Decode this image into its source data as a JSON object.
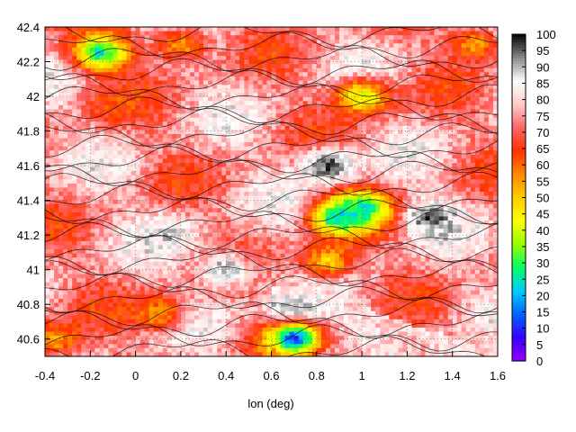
{
  "chart_data": {
    "type": "heatmap",
    "title": "",
    "xlabel": "lon (deg)",
    "ylabel": "",
    "xlim": [
      -0.4,
      1.6
    ],
    "ylim": [
      40.5,
      42.4
    ],
    "x_ticks": [
      "-0.4",
      "-0.2",
      "0",
      "0.2",
      "0.4",
      "0.6",
      "0.8",
      "1",
      "1.2",
      "1.4",
      "1.6"
    ],
    "y_ticks": [
      "40.6",
      "40.8",
      "41",
      "41.2",
      "41.4",
      "41.6",
      "41.8",
      "42",
      "42.2",
      "42.4"
    ],
    "colorbar": {
      "range": [
        0,
        100
      ],
      "ticks": [
        "0",
        "5",
        "10",
        "15",
        "20",
        "25",
        "30",
        "35",
        "40",
        "45",
        "50",
        "55",
        "60",
        "65",
        "70",
        "75",
        "80",
        "85",
        "90",
        "95",
        "100"
      ],
      "palette": [
        "#9900ff",
        "#3300ff",
        "#0066ff",
        "#00ccff",
        "#00ff66",
        "#99ff00",
        "#ffff00",
        "#ffcc00",
        "#ff8800",
        "#ff3300",
        "#ff6666",
        "#ffcccc",
        "#ffffff",
        "#888888",
        "#000000"
      ]
    },
    "grid": true,
    "contours": true,
    "dominant_value": 75,
    "sea_value": 80,
    "features": [
      {
        "kind": "high",
        "lon": 0.7,
        "lat": 40.75,
        "value": 95
      },
      {
        "kind": "high",
        "lon": 0.85,
        "lat": 41.6,
        "value": 96
      },
      {
        "kind": "high",
        "lon": 1.3,
        "lat": 41.3,
        "value": 95
      },
      {
        "kind": "high",
        "lon": 0.4,
        "lat": 41.0,
        "value": 92
      },
      {
        "kind": "high",
        "lon": 0.15,
        "lat": 41.2,
        "value": 88
      },
      {
        "kind": "low",
        "lon": 0.9,
        "lat": 41.3,
        "value": 22
      },
      {
        "kind": "low",
        "lon": 1.0,
        "lat": 41.35,
        "value": 25
      },
      {
        "kind": "low",
        "lon": -0.15,
        "lat": 42.25,
        "value": 25
      },
      {
        "kind": "low",
        "lon": 1.0,
        "lat": 42.0,
        "value": 40
      },
      {
        "kind": "low",
        "lon": 0.85,
        "lat": 41.05,
        "value": 50
      },
      {
        "kind": "low",
        "lon": 0.1,
        "lat": 40.75,
        "value": 55
      },
      {
        "kind": "low",
        "lon": -0.35,
        "lat": 40.6,
        "value": 55
      },
      {
        "kind": "low",
        "lon": 0.2,
        "lat": 42.3,
        "value": 55
      },
      {
        "kind": "low",
        "lon": 1.5,
        "lat": 42.3,
        "value": 55
      },
      {
        "kind": "low",
        "lon": -0.1,
        "lat": 41.95,
        "value": 62
      },
      {
        "kind": "low",
        "lon": 0.7,
        "lat": 40.6,
        "value": 12
      }
    ]
  }
}
